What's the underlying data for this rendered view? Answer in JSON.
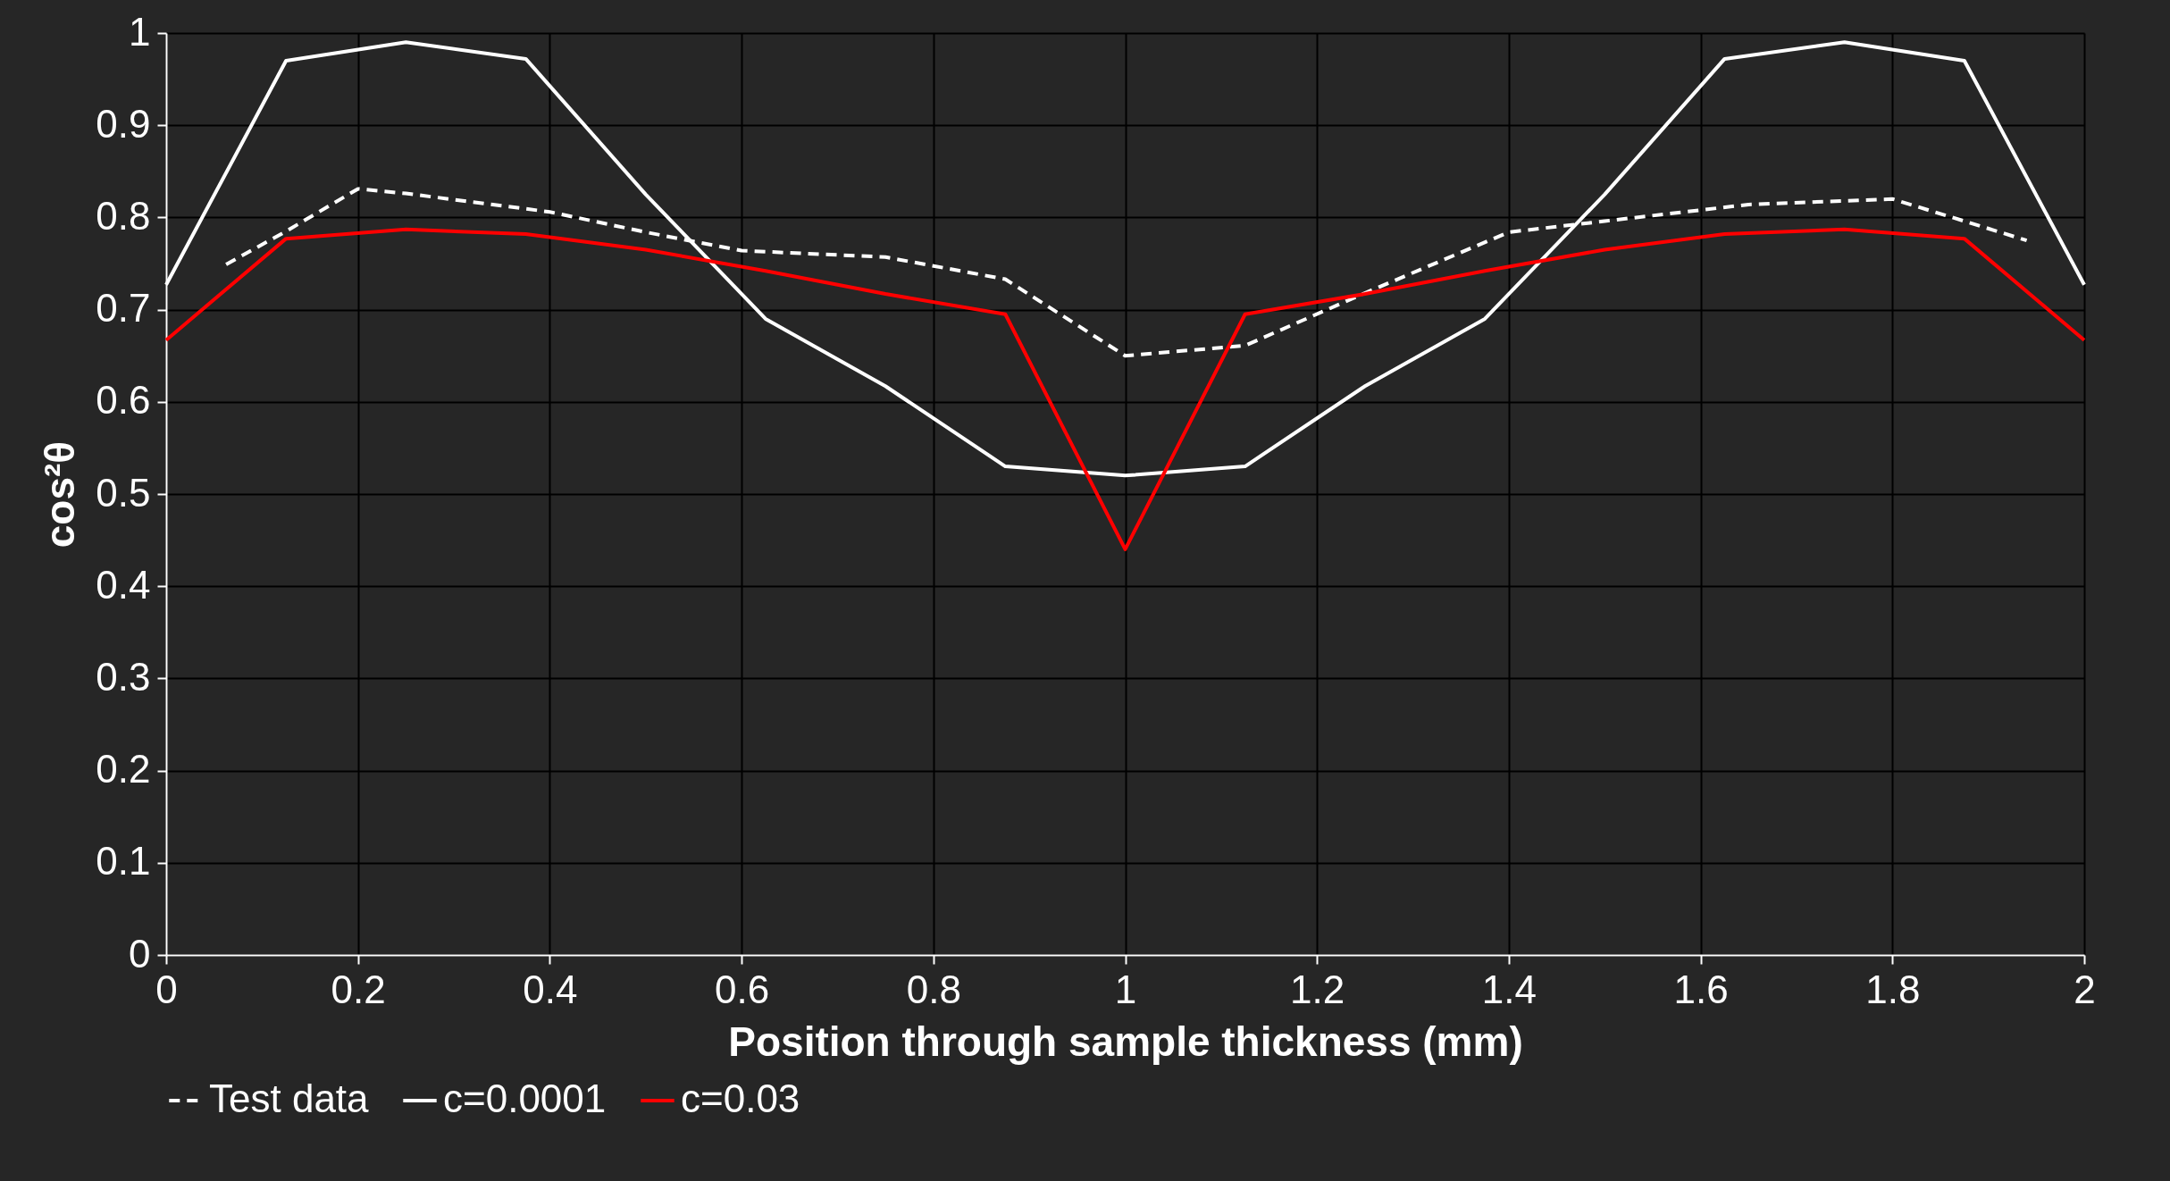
{
  "chart_data": {
    "type": "line",
    "xlabel": "Position through sample thickness (mm)",
    "ylabel": "cos²θ",
    "xlim": [
      0,
      2
    ],
    "xticks": [
      0,
      0.2,
      0.4,
      0.6,
      0.8,
      1,
      1.2,
      1.4,
      1.6,
      1.8,
      2
    ],
    "ylim": [
      0,
      1
    ],
    "yticks": [
      0,
      0.1,
      0.2,
      0.3,
      0.4,
      0.5,
      0.6,
      0.7,
      0.8,
      0.9,
      1
    ],
    "grid": true,
    "legend": "bottom",
    "marker": "none",
    "series": [
      {
        "name": "Test data",
        "color": "#ffffff",
        "line_style": "dashed",
        "x": [
          0.0625,
          0.125,
          0.2,
          0.25,
          0.4,
          0.5,
          0.6,
          0.75,
          0.875,
          1,
          1.125,
          1.25,
          1.4,
          1.5,
          1.65,
          1.8,
          1.875,
          1.94
        ],
        "values": [
          0.749,
          0.785,
          0.831,
          0.826,
          0.806,
          0.784,
          0.764,
          0.757,
          0.733,
          0.65,
          0.661,
          0.718,
          0.784,
          0.796,
          0.814,
          0.82,
          0.796,
          0.775
        ]
      },
      {
        "name": "c=0.0001",
        "color": "#ffffff",
        "line_style": "solid",
        "x": [
          0,
          0.125,
          0.25,
          0.375,
          0.5,
          0.625,
          0.75,
          0.875,
          1,
          1.125,
          1.25,
          1.375,
          1.5,
          1.625,
          1.75,
          1.875,
          2
        ],
        "values": [
          0.727,
          0.97,
          0.99,
          0.972,
          0.825,
          0.69,
          0.617,
          0.53,
          0.52,
          0.53,
          0.617,
          0.69,
          0.825,
          0.972,
          0.99,
          0.97,
          0.727
        ]
      },
      {
        "name": "c=0.03",
        "color": "#ff0000",
        "line_style": "solid",
        "x": [
          0,
          0.125,
          0.25,
          0.375,
          0.5,
          0.625,
          0.75,
          0.875,
          1,
          1.125,
          1.25,
          1.375,
          1.5,
          1.625,
          1.75,
          1.875,
          2
        ],
        "values": [
          0.667,
          0.777,
          0.787,
          0.782,
          0.765,
          0.742,
          0.717,
          0.695,
          0.44,
          0.695,
          0.717,
          0.742,
          0.765,
          0.782,
          0.787,
          0.777,
          0.667
        ]
      }
    ]
  }
}
